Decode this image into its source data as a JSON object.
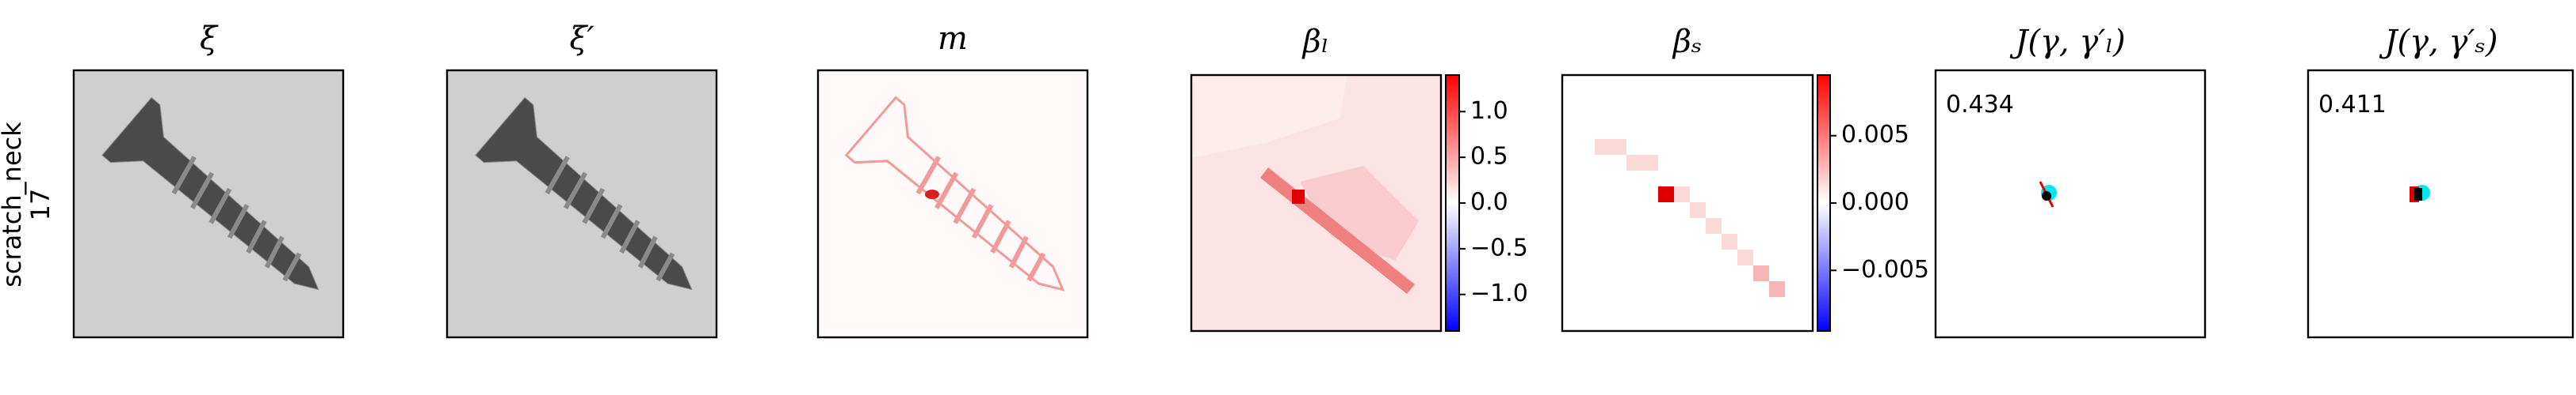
{
  "row_label": {
    "name": "scratch_neck",
    "index": "17"
  },
  "panels": [
    {
      "title": "ξ"
    },
    {
      "title": "ξ′"
    },
    {
      "title": "m"
    },
    {
      "title": "βₗ",
      "colorbar": {
        "clim": [
          -1.4,
          1.4
        ],
        "ticks": [
          {
            "value": 1,
            "label": "1.0"
          },
          {
            "value": 0.5,
            "label": "0.5"
          },
          {
            "value": 0,
            "label": "0.0"
          },
          {
            "value": -0.5,
            "label": "−0.5"
          },
          {
            "value": -1,
            "label": "−1.0"
          }
        ]
      }
    },
    {
      "title": "βₛ",
      "colorbar": {
        "clim": [
          -0.0095,
          0.0095
        ],
        "ticks": [
          {
            "value": 0.005,
            "label": "0.005"
          },
          {
            "value": 0,
            "label": "0.000"
          },
          {
            "value": -0.005,
            "label": "−0.005"
          }
        ]
      }
    },
    {
      "title": "J(γ, γ′ₗ)",
      "annotation": "0.434"
    },
    {
      "title": "J(γ, γ′ₛ)",
      "annotation": "0.411"
    }
  ]
}
